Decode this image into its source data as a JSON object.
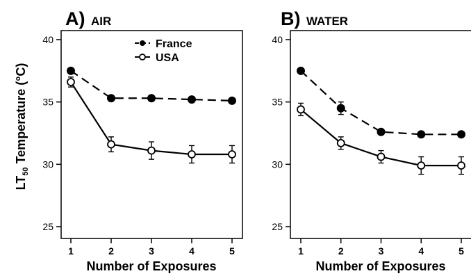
{
  "chart_data": [
    {
      "type": "line",
      "panel_letter": "A)",
      "title": "AIR",
      "xlabel": "Number of Exposures",
      "ylabel": "LT50 Temperature (°C)",
      "ylabel_main": "LT",
      "ylabel_sub": "50",
      "ylabel_rest": " Temperature (°C)",
      "x": [
        1,
        2,
        3,
        4,
        5
      ],
      "xlim": [
        1,
        5
      ],
      "ylim": [
        25,
        40
      ],
      "yticks": [
        25,
        30,
        35,
        40
      ],
      "legend": "top-right",
      "series": [
        {
          "name": "France",
          "style": "dashed",
          "marker": "filled-circle",
          "values": [
            37.5,
            35.3,
            35.3,
            35.2,
            35.1
          ],
          "errors": [
            0.1,
            0.1,
            0.1,
            0.1,
            0.1
          ]
        },
        {
          "name": "USA",
          "style": "solid",
          "marker": "open-circle",
          "values": [
            36.6,
            31.6,
            31.1,
            30.8,
            30.8
          ],
          "errors": [
            0.4,
            0.6,
            0.7,
            0.7,
            0.7
          ]
        }
      ]
    },
    {
      "type": "line",
      "panel_letter": "B)",
      "title": "WATER",
      "xlabel": "Number of Exposures",
      "x": [
        1,
        2,
        3,
        4,
        5
      ],
      "xlim": [
        1,
        5
      ],
      "ylim": [
        25,
        40
      ],
      "yticks": [
        25,
        30,
        35,
        40
      ],
      "series": [
        {
          "name": "France",
          "style": "dashed",
          "marker": "filled-circle",
          "values": [
            37.5,
            34.5,
            32.6,
            32.4,
            32.4
          ],
          "errors": [
            0.1,
            0.5,
            0.1,
            0.1,
            0.1
          ]
        },
        {
          "name": "USA",
          "style": "solid",
          "marker": "open-circle",
          "values": [
            34.4,
            31.7,
            30.6,
            29.9,
            29.9
          ],
          "errors": [
            0.5,
            0.5,
            0.5,
            0.7,
            0.7
          ]
        }
      ]
    }
  ]
}
